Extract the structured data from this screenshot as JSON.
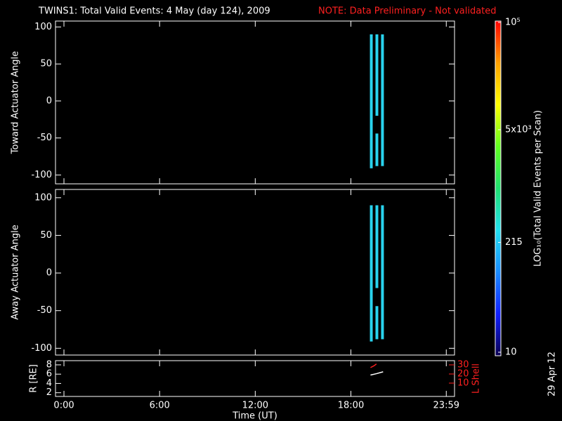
{
  "chart_data": [
    {
      "type": "spectrogram",
      "title": "TWINS1: Total Valid Events:  4 May (day 124), 2009",
      "subtitle": "NOTE: Data Preliminary - Not validated",
      "ylabel": "Toward Actuator Angle",
      "xlim": [
        -0.53,
        24.5
      ],
      "xticks": [
        0,
        6,
        12,
        18,
        23.983
      ],
      "ylim": [
        -112,
        108
      ],
      "yticks": [
        -100,
        -50,
        0,
        50,
        100
      ],
      "x": [
        19.28,
        19.63,
        19.63,
        19.98
      ],
      "y_low": [
        -91,
        -20,
        -88,
        -88
      ],
      "y_high": [
        90,
        90,
        -44,
        90
      ],
      "values": [
        400,
        400,
        400,
        400
      ],
      "color": "#29d3ee"
    },
    {
      "type": "spectrogram",
      "ylabel": "Away Actuator Angle",
      "xlim": [
        -0.53,
        24.5
      ],
      "xticks": [
        0,
        6,
        12,
        18,
        23.983
      ],
      "ylim": [
        -109,
        111
      ],
      "yticks": [
        -100,
        -50,
        0,
        50,
        100
      ],
      "x": [
        19.28,
        19.63,
        19.63,
        19.98
      ],
      "y_low": [
        -91,
        -20,
        -88,
        -88
      ],
      "y_high": [
        90,
        90,
        -44,
        90
      ],
      "values": [
        400,
        400,
        400,
        400
      ],
      "color": "#29d3ee"
    },
    {
      "type": "line",
      "ylabel": "R [RE]",
      "xlabel": "Time (UT)",
      "y2label": "L Shell",
      "y2color": "#ff2020",
      "xlim": [
        -0.53,
        24.5
      ],
      "xticks": [
        {
          "value": 0,
          "label": "0:00"
        },
        {
          "value": 6,
          "label": "6:00"
        },
        {
          "value": 12,
          "label": "12:00"
        },
        {
          "value": 18,
          "label": "18:00"
        },
        {
          "value": 23.983,
          "label": "23:59"
        }
      ],
      "ylim": [
        1.2,
        8.9
      ],
      "yticks": [
        2,
        4,
        6,
        8
      ],
      "y2lim": [
        -4.6,
        34.6
      ],
      "y2ticks": [
        10,
        20,
        30
      ],
      "series": [
        {
          "color": "#ffffff",
          "x": [
            19.23,
            19.6,
            20.02
          ],
          "values": [
            5.8,
            6.1,
            6.5
          ]
        },
        {
          "color": "#ff2020",
          "axis": "y2",
          "x": [
            19.23,
            19.45,
            19.6
          ],
          "values": [
            27,
            29,
            31
          ]
        }
      ]
    },
    {
      "type": "colorbar",
      "label": "LOG₁₀(Total Valid Events per Scan)",
      "log": true,
      "lim": [
        10,
        100000
      ],
      "ticks": [
        {
          "value": 10,
          "label": "10"
        },
        {
          "value": 215,
          "label": "215"
        },
        {
          "value": 5000,
          "label": "5x10³"
        },
        {
          "value": 100000,
          "label": "10⁵"
        }
      ],
      "colors": [
        "#0a0050",
        "#1020ff",
        "#1a8cff",
        "#22e0f0",
        "#20e070",
        "#60ff20",
        "#ffff00",
        "#ffa000",
        "#ff0000"
      ]
    }
  ],
  "footer": "29 Apr 12"
}
